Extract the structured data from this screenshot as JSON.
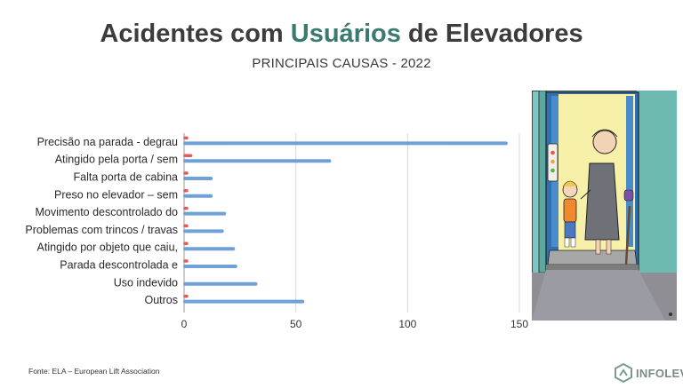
{
  "header": {
    "title_pre": "Acidentes com ",
    "title_accent": "Usuários",
    "title_post": " de Elevadores",
    "subtitle": "PRINCIPAIS CAUSAS - 2022"
  },
  "colors": {
    "title": "#3c3c3c",
    "accent": "#3b7a6e",
    "series_main": "#6fa1d8",
    "series_secondary": "#e8585a",
    "grid": "#d9d9d9"
  },
  "chart_data": {
    "type": "bar",
    "orientation": "horizontal",
    "categories": [
      "Precisão na parada - degrau",
      "Atingido pela porta / sem",
      "Falta porta de cabina",
      "Preso no elevador – sem",
      "Movimento descontrolado do",
      "Problemas com trincos / travas",
      "Atingido por objeto que caiu,",
      "Parada descontrolada e",
      "Uso indevido",
      "Outros"
    ],
    "series": [
      {
        "values": [
          144,
          65,
          12,
          12,
          18,
          17,
          22,
          23,
          32,
          53
        ]
      },
      {
        "values": [
          0.5,
          3,
          0.5,
          0.5,
          0.5,
          1,
          0.5,
          0.5,
          0,
          1
        ]
      }
    ],
    "xticks": [
      0,
      50,
      100,
      150
    ],
    "xlim": [
      0,
      150
    ],
    "grid": true,
    "legend": "none"
  },
  "footer": {
    "source": "Fonte: ELA – European Lift Association",
    "logo_text": "INFOLEV"
  },
  "illustration": {
    "icon": "elevator-elderly-woman-child-illustration"
  }
}
